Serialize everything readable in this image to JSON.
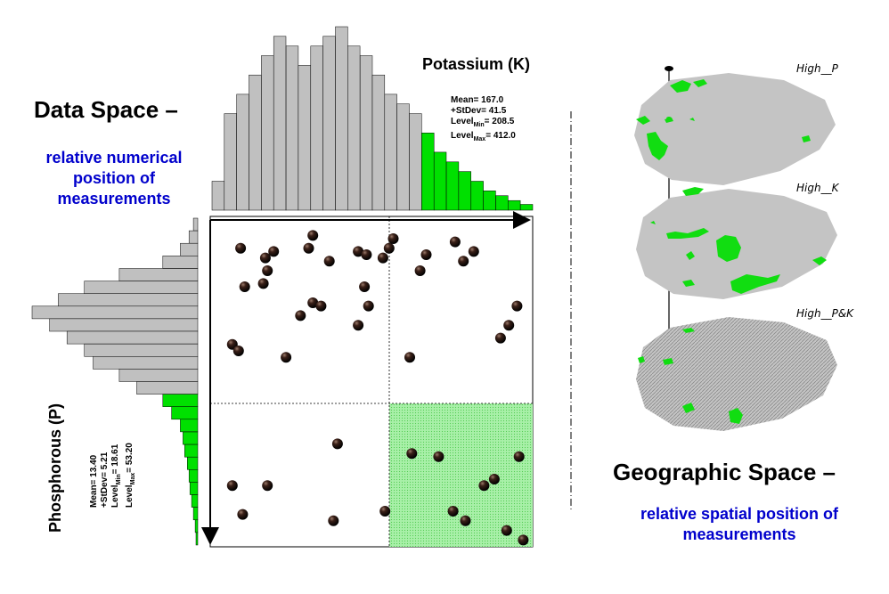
{
  "data_space": {
    "title": "Data Space –",
    "subtitle_lines": [
      "relative numerical",
      "position of",
      "measurements"
    ]
  },
  "geographic_space": {
    "title": "Geographic Space –",
    "subtitle_lines": [
      "relative spatial position of",
      "measurements"
    ]
  },
  "potassium": {
    "label": "Potassium (K)",
    "stats": {
      "mean": "Mean= 167.0",
      "stdev": "+StDev= 41.5",
      "level_min_prefix": "Level",
      "level_min_sub": "Min",
      "level_min_value": "= 208.5",
      "level_max_prefix": "Level",
      "level_max_sub": "Max",
      "level_max_value": "= 412.0"
    },
    "histogram": [
      3,
      10,
      12,
      14,
      16,
      18,
      17,
      15,
      17,
      18,
      19,
      17,
      16,
      14,
      12,
      11,
      10,
      8,
      6,
      5,
      4,
      3,
      2,
      1.5,
      1,
      0.6
    ],
    "threshold_bin": 17
  },
  "phosphorous": {
    "label": "Phosphorous (P)",
    "stats": {
      "mean": "Mean= 13.40",
      "stdev": "+StDev= 5.21",
      "level_min_prefix": "Level",
      "level_min_sub": "Min",
      "level_min_value": "= 18.61",
      "level_max_prefix": "Level",
      "level_max_sub": "Max",
      "level_max_value": "= 53.20"
    },
    "histogram": [
      0.5,
      1,
      2,
      4,
      9,
      13,
      16,
      19,
      17,
      15,
      13,
      12,
      9,
      7,
      4,
      3,
      2,
      1.7,
      1.5,
      1.2,
      1,
      0.9,
      0.7,
      0.5,
      0.3,
      0.2
    ],
    "threshold_bin": 14
  },
  "scatter": {
    "k_threshold": 208.5,
    "p_threshold": 18.61,
    "highlight_color": "#90ee90",
    "points": [
      [
        13,
        0.92
      ],
      [
        25,
        0.89
      ],
      [
        48,
        0.96
      ],
      [
        29,
        0.91
      ],
      [
        46,
        0.92
      ],
      [
        56,
        0.88
      ],
      [
        70,
        0.91
      ],
      [
        85,
        0.92
      ],
      [
        82,
        0.89
      ],
      [
        74,
        0.9
      ],
      [
        87,
        0.95
      ],
      [
        117,
        0.94
      ],
      [
        126,
        0.91
      ],
      [
        121,
        0.88
      ],
      [
        103,
        0.9
      ],
      [
        15,
        0.8
      ],
      [
        24,
        0.81
      ],
      [
        26,
        0.85
      ],
      [
        73,
        0.8
      ],
      [
        48,
        0.75
      ],
      [
        52,
        0.74
      ],
      [
        75,
        0.74
      ],
      [
        42,
        0.71
      ],
      [
        70,
        0.68
      ],
      [
        9,
        0.62
      ],
      [
        12,
        0.6
      ],
      [
        35,
        0.58
      ],
      [
        100,
        0.85
      ],
      [
        95,
        0.58
      ],
      [
        147,
        0.74
      ],
      [
        143,
        0.68
      ],
      [
        139,
        0.64
      ],
      [
        9,
        0.18
      ],
      [
        26,
        0.18
      ],
      [
        14,
        0.09
      ],
      [
        60,
        0.31
      ],
      [
        58,
        0.07
      ],
      [
        83,
        0.1
      ],
      [
        96,
        0.28
      ],
      [
        109,
        0.27
      ],
      [
        131,
        0.18
      ],
      [
        136,
        0.2
      ],
      [
        116,
        0.1
      ],
      [
        122,
        0.07
      ],
      [
        142,
        0.04
      ],
      [
        148,
        0.27
      ],
      [
        150,
        0.01
      ]
    ]
  },
  "layers": [
    {
      "label": "High__P"
    },
    {
      "label": "High__K"
    },
    {
      "label": "High__P&K"
    }
  ],
  "colors": {
    "bar_gray": "#c0c0c0",
    "bar_green": "#00e000",
    "patch_green": "#11dd11",
    "text_blue": "#0000cc"
  }
}
